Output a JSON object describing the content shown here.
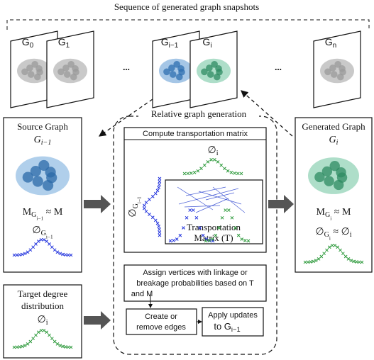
{
  "header": {
    "title": "Sequence of generated graph snapshots"
  },
  "snapshots": [
    [
      {
        "t": "G",
        "s": 0
      },
      {
        "t": "0",
        "s": 1
      }
    ],
    [
      {
        "t": "G",
        "s": 0
      },
      {
        "t": "1",
        "s": 1
      }
    ],
    [
      {
        "t": "G",
        "s": 0
      },
      {
        "t": "i−1",
        "s": 1
      }
    ],
    [
      {
        "t": "G",
        "s": 0
      },
      {
        "t": "i",
        "s": 1
      }
    ],
    [
      {
        "t": "G",
        "s": 0
      },
      {
        "t": "n",
        "s": 1
      }
    ]
  ],
  "ellipses": [
    "...",
    "..."
  ],
  "source": {
    "title": "Source Graph",
    "graph": [
      {
        "t": "G",
        "s": 0
      },
      {
        "t": "i−1",
        "s": 1
      }
    ],
    "similarity": [
      {
        "t": "M",
        "s": 0
      },
      {
        "t": "G",
        "s": 1
      },
      {
        "t": "i−1",
        "s": 2
      },
      {
        "t": " ≈ M",
        "s": 0
      }
    ],
    "distribution": [
      {
        "t": "∅",
        "s": 0
      },
      {
        "t": "G",
        "s": 1
      },
      {
        "t": "i−1",
        "s": 2
      }
    ]
  },
  "target": {
    "title": [
      "Target degree",
      "distribution"
    ],
    "distribution": [
      {
        "t": "∅",
        "s": 0
      },
      {
        "t": "i",
        "s": 1
      }
    ]
  },
  "generation": {
    "title": "Relative graph generation",
    "compute": {
      "title": "Compute transportation matrix",
      "target": [
        {
          "t": "∅",
          "s": 0
        },
        {
          "t": "i",
          "s": 1
        }
      ],
      "source": [
        {
          "t": "∅",
          "s": 0
        },
        {
          "t": "G",
          "s": 1
        },
        {
          "t": "i−1",
          "s": 2
        }
      ],
      "matrix": [
        "Transportation",
        "Matrix (T)"
      ]
    },
    "assign": [
      "Assign vertices with linkage or",
      "breakage probabilities based on T",
      "and M"
    ],
    "create": [
      "Create or",
      "remove edges"
    ],
    "apply": {
      "line": "Apply updates",
      "target": [
        {
          "t": "to ",
          "s": 0
        },
        {
          "t": "G",
          "s": 0
        },
        {
          "t": "i−1",
          "s": 1
        }
      ]
    }
  },
  "generated": {
    "title": "Generated Graph",
    "graph": [
      {
        "t": "G",
        "s": 0
      },
      {
        "t": "i",
        "s": 1
      }
    ],
    "similarity": [
      {
        "t": "M",
        "s": 0
      },
      {
        "t": "G",
        "s": 1
      },
      {
        "t": "i",
        "s": 2
      },
      {
        "t": " ≈ M",
        "s": 0
      }
    ],
    "distribution": [
      {
        "t": "∅",
        "s": 0
      },
      {
        "t": "G",
        "s": 1
      },
      {
        "t": "i",
        "s": 2
      },
      {
        "t": " ≈ ∅",
        "s": 0
      },
      {
        "t": "i",
        "s": 1
      }
    ]
  }
}
